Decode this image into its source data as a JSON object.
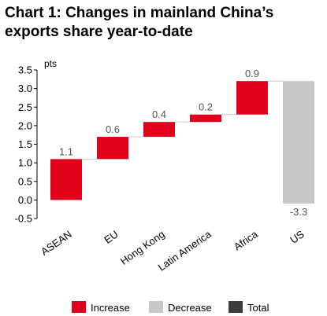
{
  "chart_data": {
    "type": "bar",
    "subtype": "waterfall",
    "title": "Chart 1: Changes in mainland China’s exports share year-to-date",
    "ylabel": "pts",
    "ylim": [
      -0.5,
      3.5
    ],
    "yticks": [
      "3.5",
      "3.0",
      "2.5",
      "2.0",
      "1.5",
      "1.0",
      "0.5",
      "0.0",
      "-0.5"
    ],
    "categories": [
      "ASEAN",
      "EU",
      "Hong Kong",
      "Latin America",
      "Africa",
      "US"
    ],
    "values": [
      1.1,
      0.6,
      0.4,
      0.2,
      0.9,
      -3.3
    ],
    "value_labels": [
      "1.1",
      "0.6",
      "0.4",
      "0.2",
      "0.9",
      "-3.3"
    ],
    "bar_kind": [
      "increase",
      "increase",
      "increase",
      "increase",
      "increase",
      "decrease"
    ],
    "legend": {
      "placement": "bottom",
      "items": [
        {
          "label": "Increase",
          "color": "#e2001a"
        },
        {
          "label": "Decrease",
          "color": "#c8c8c8"
        },
        {
          "label": "Total",
          "color": "#3c3c3c"
        }
      ]
    },
    "grid": false,
    "colors": {
      "increase": "#e2001a",
      "decrease": "#c8c8c8",
      "total": "#3c3c3c",
      "connector": "#c8c8c8"
    }
  }
}
